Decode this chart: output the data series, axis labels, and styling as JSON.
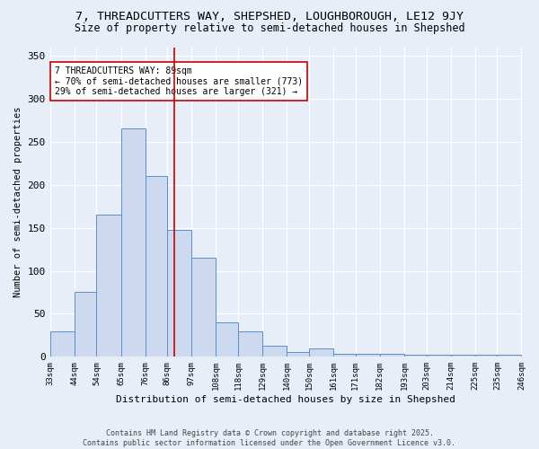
{
  "title1": "7, THREADCUTTERS WAY, SHEPSHED, LOUGHBOROUGH, LE12 9JY",
  "title2": "Size of property relative to semi-detached houses in Shepshed",
  "xlabel": "Distribution of semi-detached houses by size in Shepshed",
  "ylabel": "Number of semi-detached properties",
  "bin_edges": [
    33,
    44,
    54,
    65,
    76,
    86,
    97,
    108,
    118,
    129,
    140,
    150,
    161,
    171,
    182,
    193,
    203,
    214,
    225,
    235,
    246
  ],
  "bar_heights": [
    30,
    75,
    165,
    265,
    210,
    148,
    115,
    40,
    30,
    13,
    6,
    10,
    4,
    3,
    3,
    2,
    2,
    2,
    2,
    2
  ],
  "bar_color": "#ccd9ee",
  "bar_edge_color": "#5b8fc9",
  "property_size": 89,
  "vline_color": "#cc0000",
  "annotation_text": "7 THREADCUTTERS WAY: 89sqm\n← 70% of semi-detached houses are smaller (773)\n29% of semi-detached houses are larger (321) →",
  "annotation_box_color": "#ffffff",
  "annotation_box_edge": "#cc0000",
  "footer1": "Contains HM Land Registry data © Crown copyright and database right 2025.",
  "footer2": "Contains public sector information licensed under the Open Government Licence v3.0.",
  "ylim": [
    0,
    360
  ],
  "yticks": [
    0,
    50,
    100,
    150,
    200,
    250,
    300,
    350
  ],
  "bg_color": "#e8eef8",
  "plot_bg_color": "#e8eef8",
  "grid_color": "#ffffff",
  "title_fontsize": 9.5,
  "subtitle_fontsize": 8.5
}
